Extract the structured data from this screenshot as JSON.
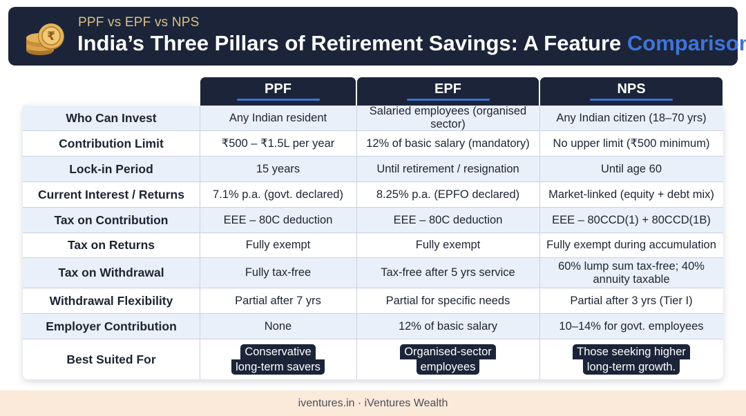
{
  "header": {
    "subtitle": "PPF vs EPF vs NPS",
    "title_main": "India’s Three Pillars of Retirement Savings: A Feature ",
    "title_accent": "Comparison",
    "accent_color": "#3f74d8",
    "icon": "rupee-coins-icon"
  },
  "table": {
    "columns": [
      "PPF",
      "EPF",
      "NPS"
    ],
    "rows": [
      {
        "label": "Who Can Invest",
        "cells": [
          "Any Indian resident",
          "Salaried employees (organised sector)",
          "Any Indian citizen (18–70 yrs)"
        ]
      },
      {
        "label": "Contribution Limit",
        "cells": [
          "₹500 – ₹1.5L per year",
          "12% of basic salary (mandatory)",
          "No upper limit (₹500 minimum)"
        ]
      },
      {
        "label": "Lock-in Period",
        "cells": [
          "15 years",
          "Until retirement / resignation",
          "Until age 60"
        ]
      },
      {
        "label": "Current Interest / Returns",
        "cells": [
          "7.1% p.a. (govt. declared)",
          "8.25% p.a. (EPFO declared)",
          "Market-linked (equity + debt mix)"
        ]
      },
      {
        "label": "Tax on Contribution",
        "cells": [
          "EEE – 80C deduction",
          "EEE – 80C deduction",
          "EEE – 80CCD(1) + 80CCD(1B)"
        ]
      },
      {
        "label": "Tax on Returns",
        "cells": [
          "Fully exempt",
          "Fully exempt",
          "Fully exempt during accumulation"
        ]
      },
      {
        "label": "Tax on Withdrawal",
        "cells": [
          "Fully tax-free",
          "Tax-free after 5 yrs service",
          "60% lump sum tax-free; 40% annuity taxable"
        ]
      },
      {
        "label": "Withdrawal Flexibility",
        "cells": [
          "Partial after 7 yrs",
          "Partial for specific needs",
          "Partial after 3 yrs (Tier I)"
        ]
      },
      {
        "label": "Employer Contribution",
        "cells": [
          "None",
          "12% of basic salary",
          "10–14% for govt. employees"
        ]
      }
    ],
    "best_suited": {
      "label": "Best Suited For",
      "cells": [
        [
          "Conservative",
          "long-term savers"
        ],
        [
          "Organised-sector",
          "employees"
        ],
        [
          "Those seeking higher",
          "long-term growth."
        ]
      ]
    }
  },
  "footer": {
    "text": "iventures.in · iVentures Wealth"
  }
}
